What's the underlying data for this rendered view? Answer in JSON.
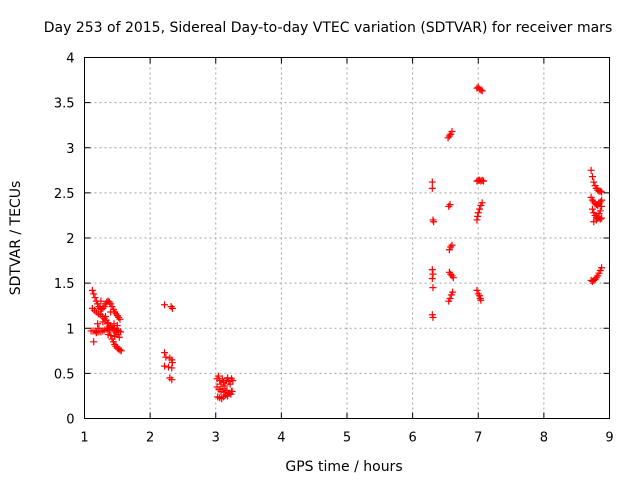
{
  "chart_data": {
    "type": "scatter",
    "title": "Day 253 of 2015, Sidereal Day-to-day VTEC variation (SDTVAR) for receiver mars",
    "xlabel": "GPS time / hours",
    "ylabel": "SDTVAR / TECUs",
    "xlim": [
      1,
      9
    ],
    "ylim": [
      0,
      4
    ],
    "xticks": [
      "1",
      "2",
      "3",
      "4",
      "5",
      "6",
      "7",
      "8",
      "9"
    ],
    "yticks": [
      "0",
      "0.5",
      "1",
      "1.5",
      "2",
      "2.5",
      "3",
      "3.5",
      "4"
    ],
    "grid": true,
    "marker": "plus",
    "color": "#ff0000",
    "series": [
      {
        "name": "SDTVAR",
        "points": [
          [
            1.12,
            1.42
          ],
          [
            1.14,
            1.38
          ],
          [
            1.16,
            1.34
          ],
          [
            1.18,
            1.3
          ],
          [
            1.2,
            1.27
          ],
          [
            1.22,
            1.24
          ],
          [
            1.24,
            1.22
          ],
          [
            1.26,
            1.21
          ],
          [
            1.28,
            1.22
          ],
          [
            1.3,
            1.24
          ],
          [
            1.32,
            1.27
          ],
          [
            1.34,
            1.29
          ],
          [
            1.36,
            1.3
          ],
          [
            1.38,
            1.29
          ],
          [
            1.4,
            1.27
          ],
          [
            1.42,
            1.24
          ],
          [
            1.44,
            1.21
          ],
          [
            1.46,
            1.18
          ],
          [
            1.48,
            1.16
          ],
          [
            1.5,
            1.14
          ],
          [
            1.52,
            1.12
          ],
          [
            1.54,
            1.1
          ],
          [
            1.12,
            1.22
          ],
          [
            1.15,
            1.2
          ],
          [
            1.18,
            1.18
          ],
          [
            1.21,
            1.16
          ],
          [
            1.24,
            1.15
          ],
          [
            1.27,
            1.13
          ],
          [
            1.3,
            1.11
          ],
          [
            1.33,
            1.09
          ],
          [
            1.36,
            1.06
          ],
          [
            1.39,
            1.03
          ],
          [
            1.42,
            1.0
          ],
          [
            1.45,
            0.97
          ],
          [
            1.48,
            0.95
          ],
          [
            1.51,
            0.93
          ],
          [
            1.1,
            0.97
          ],
          [
            1.13,
            0.97
          ],
          [
            1.16,
            0.97
          ],
          [
            1.19,
            0.96
          ],
          [
            1.22,
            0.96
          ],
          [
            1.25,
            0.96
          ],
          [
            1.28,
            0.97
          ],
          [
            1.31,
            0.98
          ],
          [
            1.34,
            0.99
          ],
          [
            1.37,
            1.0
          ],
          [
            1.4,
            1.01
          ],
          [
            1.43,
            1.0
          ],
          [
            1.46,
            0.99
          ],
          [
            1.49,
            0.98
          ],
          [
            1.52,
            0.97
          ],
          [
            1.55,
            0.96
          ],
          [
            1.38,
            0.97
          ],
          [
            1.4,
            0.92
          ],
          [
            1.42,
            0.88
          ],
          [
            1.44,
            0.85
          ],
          [
            1.46,
            0.82
          ],
          [
            1.48,
            0.8
          ],
          [
            1.5,
            0.78
          ],
          [
            1.52,
            0.77
          ],
          [
            1.54,
            0.76
          ],
          [
            1.56,
            0.75
          ],
          [
            1.14,
            0.85
          ],
          [
            1.18,
            0.95
          ],
          [
            1.2,
            1.05
          ],
          [
            1.25,
            1.3
          ],
          [
            1.32,
            1.13
          ],
          [
            1.35,
            1.05
          ],
          [
            1.4,
            1.18
          ],
          [
            1.45,
            1.05
          ],
          [
            1.5,
            1.03
          ],
          [
            1.53,
            0.9
          ],
          [
            1.46,
            0.91
          ],
          [
            1.36,
            0.93
          ],
          [
            1.28,
            1.07
          ],
          [
            1.22,
            1.0
          ],
          [
            2.22,
            1.26
          ],
          [
            2.32,
            1.24
          ],
          [
            2.34,
            1.22
          ],
          [
            2.22,
            0.73
          ],
          [
            2.24,
            0.68
          ],
          [
            2.3,
            0.67
          ],
          [
            2.33,
            0.65
          ],
          [
            2.34,
            0.62
          ],
          [
            2.22,
            0.58
          ],
          [
            2.28,
            0.57
          ],
          [
            2.33,
            0.56
          ],
          [
            2.3,
            0.45
          ],
          [
            2.33,
            0.43
          ],
          [
            3.02,
            0.44
          ],
          [
            3.04,
            0.47
          ],
          [
            3.06,
            0.42
          ],
          [
            3.08,
            0.38
          ],
          [
            3.1,
            0.44
          ],
          [
            3.12,
            0.4
          ],
          [
            3.14,
            0.36
          ],
          [
            3.16,
            0.42
          ],
          [
            3.18,
            0.45
          ],
          [
            3.2,
            0.41
          ],
          [
            3.22,
            0.38
          ],
          [
            3.24,
            0.44
          ],
          [
            3.26,
            0.42
          ],
          [
            3.02,
            0.35
          ],
          [
            3.05,
            0.32
          ],
          [
            3.08,
            0.3
          ],
          [
            3.11,
            0.33
          ],
          [
            3.14,
            0.29
          ],
          [
            3.17,
            0.31
          ],
          [
            3.2,
            0.28
          ],
          [
            3.23,
            0.27
          ],
          [
            3.25,
            0.3
          ],
          [
            3.03,
            0.24
          ],
          [
            3.06,
            0.23
          ],
          [
            3.09,
            0.22
          ],
          [
            3.12,
            0.24
          ],
          [
            3.15,
            0.26
          ],
          [
            3.18,
            0.25
          ],
          [
            3.21,
            0.28
          ],
          [
            3.24,
            0.3
          ],
          [
            6.3,
            2.62
          ],
          [
            6.3,
            2.55
          ],
          [
            6.31,
            2.2
          ],
          [
            6.32,
            2.18
          ],
          [
            6.3,
            1.65
          ],
          [
            6.31,
            1.6
          ],
          [
            6.3,
            1.55
          ],
          [
            6.31,
            1.45
          ],
          [
            6.3,
            1.15
          ],
          [
            6.31,
            1.12
          ],
          [
            6.54,
            3.11
          ],
          [
            6.56,
            3.13
          ],
          [
            6.58,
            3.15
          ],
          [
            6.6,
            3.18
          ],
          [
            6.55,
            2.35
          ],
          [
            6.57,
            2.37
          ],
          [
            6.56,
            1.87
          ],
          [
            6.58,
            1.9
          ],
          [
            6.6,
            1.92
          ],
          [
            6.56,
            1.62
          ],
          [
            6.58,
            1.6
          ],
          [
            6.6,
            1.58
          ],
          [
            6.62,
            1.56
          ],
          [
            6.55,
            1.3
          ],
          [
            6.57,
            1.33
          ],
          [
            6.59,
            1.37
          ],
          [
            6.61,
            1.4
          ],
          [
            6.98,
            3.66
          ],
          [
            7.0,
            3.67
          ],
          [
            7.02,
            3.65
          ],
          [
            7.04,
            3.64
          ],
          [
            7.06,
            3.63
          ],
          [
            6.98,
            2.63
          ],
          [
            7.0,
            2.64
          ],
          [
            7.02,
            2.64
          ],
          [
            7.04,
            2.63
          ],
          [
            7.06,
            2.64
          ],
          [
            7.08,
            2.63
          ],
          [
            6.98,
            2.2
          ],
          [
            6.99,
            2.24
          ],
          [
            7.0,
            2.28
          ],
          [
            7.02,
            2.32
          ],
          [
            7.04,
            2.36
          ],
          [
            7.06,
            2.39
          ],
          [
            6.98,
            1.42
          ],
          [
            7.0,
            1.38
          ],
          [
            7.02,
            1.36
          ],
          [
            7.03,
            1.33
          ],
          [
            7.04,
            1.31
          ],
          [
            8.72,
            2.75
          ],
          [
            8.74,
            2.68
          ],
          [
            8.76,
            2.62
          ],
          [
            8.78,
            2.58
          ],
          [
            8.8,
            2.55
          ],
          [
            8.82,
            2.53
          ],
          [
            8.84,
            2.52
          ],
          [
            8.86,
            2.52
          ],
          [
            8.88,
            2.51
          ],
          [
            8.72,
            2.45
          ],
          [
            8.74,
            2.42
          ],
          [
            8.76,
            2.4
          ],
          [
            8.78,
            2.38
          ],
          [
            8.8,
            2.37
          ],
          [
            8.82,
            2.36
          ],
          [
            8.84,
            2.38
          ],
          [
            8.86,
            2.4
          ],
          [
            8.88,
            2.42
          ],
          [
            8.74,
            2.32
          ],
          [
            8.76,
            2.28
          ],
          [
            8.78,
            2.25
          ],
          [
            8.8,
            2.23
          ],
          [
            8.82,
            2.22
          ],
          [
            8.84,
            2.22
          ],
          [
            8.86,
            2.21
          ],
          [
            8.88,
            2.22
          ],
          [
            8.76,
            2.18
          ],
          [
            8.8,
            2.2
          ],
          [
            8.84,
            2.27
          ],
          [
            8.86,
            2.3
          ],
          [
            8.88,
            2.35
          ],
          [
            8.72,
            1.53
          ],
          [
            8.74,
            1.52
          ],
          [
            8.76,
            1.53
          ],
          [
            8.78,
            1.54
          ],
          [
            8.8,
            1.56
          ],
          [
            8.82,
            1.58
          ],
          [
            8.84,
            1.61
          ],
          [
            8.86,
            1.64
          ],
          [
            8.88,
            1.67
          ]
        ]
      }
    ]
  }
}
